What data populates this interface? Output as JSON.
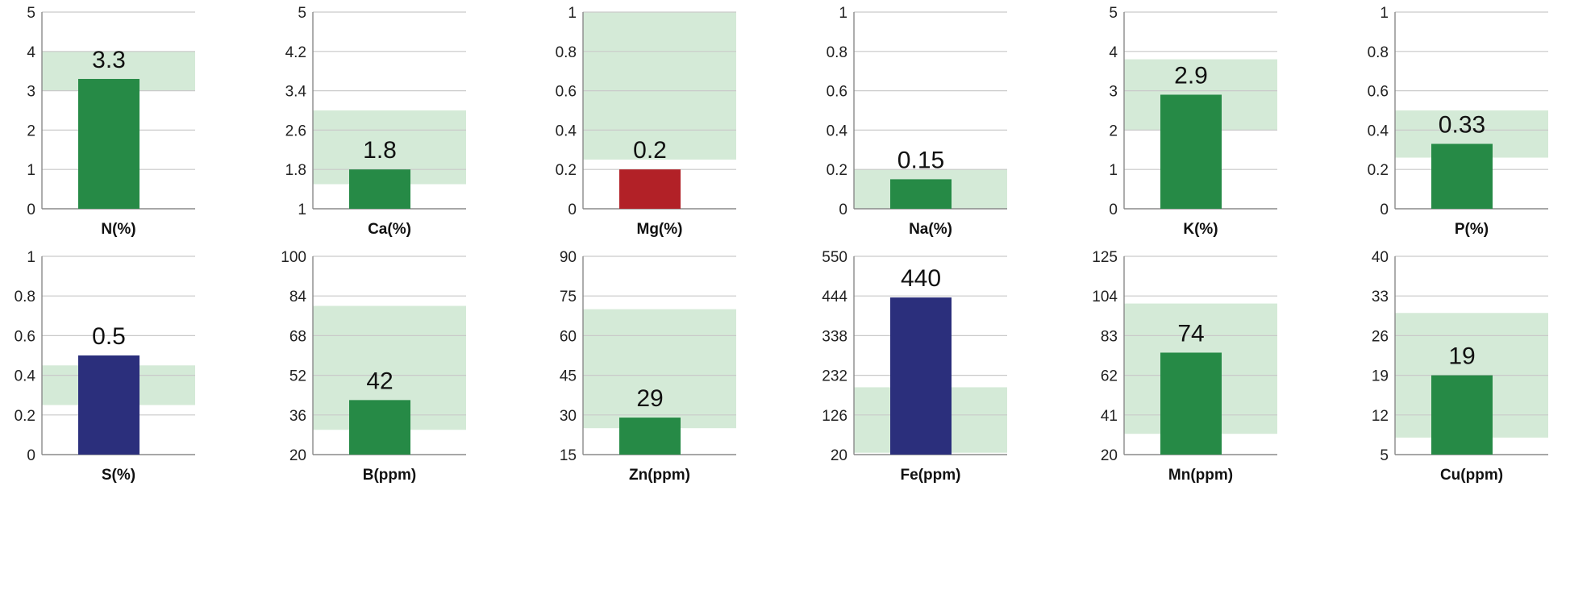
{
  "colors": {
    "range": "#d4ead7",
    "normal": "#268a46",
    "low": "#b22127",
    "high": "#2b2f7c",
    "grid": "#c9c9c9"
  },
  "chart_data": [
    {
      "type": "bar",
      "categories": [
        "N(%)"
      ],
      "values": [
        3.3
      ],
      "value_label": "3.3",
      "yticks": [
        "0",
        "1",
        "2",
        "3",
        "4",
        "5"
      ],
      "ylim": [
        0,
        5
      ],
      "range": [
        3,
        4
      ],
      "status": "normal"
    },
    {
      "type": "bar",
      "categories": [
        "Ca(%)"
      ],
      "values": [
        1.8
      ],
      "value_label": "1.8",
      "yticks": [
        "1",
        "1.8",
        "2.6",
        "3.4",
        "4.2",
        "5"
      ],
      "ylim": [
        1,
        5
      ],
      "range": [
        1.5,
        3.0
      ],
      "status": "normal"
    },
    {
      "type": "bar",
      "categories": [
        "Mg(%)"
      ],
      "values": [
        0.2
      ],
      "value_label": "0.2",
      "yticks": [
        "0",
        "0.2",
        "0.4",
        "0.6",
        "0.8",
        "1"
      ],
      "ylim": [
        0,
        1
      ],
      "range": [
        0.25,
        1.0
      ],
      "status": "low"
    },
    {
      "type": "bar",
      "categories": [
        "Na(%)"
      ],
      "values": [
        0.15
      ],
      "value_label": "0.15",
      "yticks": [
        "0",
        "0.2",
        "0.4",
        "0.6",
        "0.8",
        "1"
      ],
      "ylim": [
        0,
        1
      ],
      "range": [
        0.0,
        0.2
      ],
      "status": "normal"
    },
    {
      "type": "bar",
      "categories": [
        "K(%)"
      ],
      "values": [
        2.9
      ],
      "value_label": "2.9",
      "yticks": [
        "0",
        "1",
        "2",
        "3",
        "4",
        "5"
      ],
      "ylim": [
        0,
        5
      ],
      "range": [
        2.0,
        3.8
      ],
      "status": "normal"
    },
    {
      "type": "bar",
      "categories": [
        "P(%)"
      ],
      "values": [
        0.33
      ],
      "value_label": "0.33",
      "yticks": [
        "0",
        "0.2",
        "0.4",
        "0.6",
        "0.8",
        "1"
      ],
      "ylim": [
        0,
        1
      ],
      "range": [
        0.26,
        0.5
      ],
      "status": "normal"
    },
    {
      "type": "bar",
      "categories": [
        "S(%)"
      ],
      "values": [
        0.5
      ],
      "value_label": "0.5",
      "yticks": [
        "0",
        "0.2",
        "0.4",
        "0.6",
        "0.8",
        "1"
      ],
      "ylim": [
        0,
        1
      ],
      "range": [
        0.25,
        0.45
      ],
      "status": "high"
    },
    {
      "type": "bar",
      "categories": [
        "B(ppm)"
      ],
      "values": [
        42
      ],
      "value_label": "42",
      "yticks": [
        "20",
        "36",
        "52",
        "68",
        "84",
        "100"
      ],
      "ylim": [
        20,
        100
      ],
      "range": [
        30,
        80
      ],
      "status": "normal"
    },
    {
      "type": "bar",
      "categories": [
        "Zn(ppm)"
      ],
      "values": [
        29
      ],
      "value_label": "29",
      "yticks": [
        "15",
        "30",
        "45",
        "60",
        "75",
        "90"
      ],
      "ylim": [
        15,
        90
      ],
      "range": [
        25,
        70
      ],
      "status": "normal"
    },
    {
      "type": "bar",
      "categories": [
        "Fe(ppm)"
      ],
      "values": [
        440
      ],
      "value_label": "440",
      "yticks": [
        "20",
        "126",
        "232",
        "338",
        "444",
        "550"
      ],
      "ylim": [
        20,
        550
      ],
      "range": [
        25,
        200
      ],
      "status": "high"
    },
    {
      "type": "bar",
      "categories": [
        "Mn(ppm)"
      ],
      "values": [
        74
      ],
      "value_label": "74",
      "yticks": [
        "20",
        "41",
        "62",
        "83",
        "104",
        "125"
      ],
      "ylim": [
        20,
        125
      ],
      "range": [
        31,
        100
      ],
      "status": "normal"
    },
    {
      "type": "bar",
      "categories": [
        "Cu(ppm)"
      ],
      "values": [
        19
      ],
      "value_label": "19",
      "yticks": [
        "5",
        "12",
        "19",
        "26",
        "33",
        "40"
      ],
      "ylim": [
        5,
        40
      ],
      "range": [
        8,
        30
      ],
      "status": "normal"
    }
  ]
}
